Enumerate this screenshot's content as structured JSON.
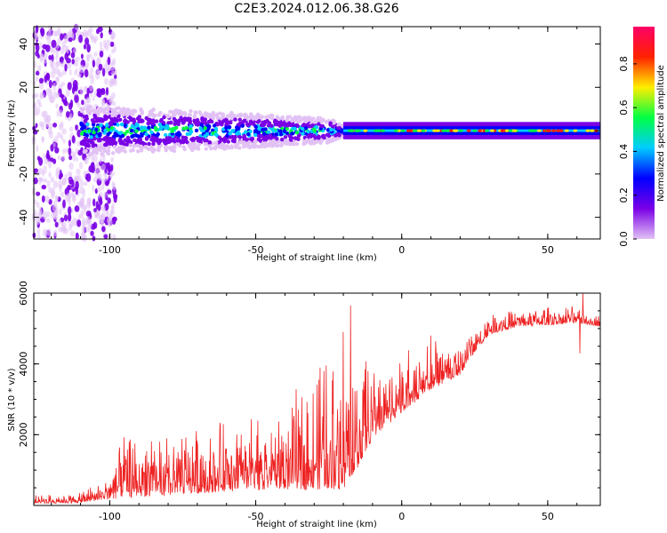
{
  "title": "C2E3.2024.012.06.38.G26",
  "chart_data": [
    {
      "type": "heatmap",
      "xlabel": "Height of straight line (km)",
      "ylabel": "Frequency (Hz)",
      "xlim": [
        -126,
        68
      ],
      "ylim": [
        -50,
        48
      ],
      "xticks": [
        -100,
        -50,
        0,
        50
      ],
      "yticks": [
        -40,
        -20,
        0,
        20,
        40
      ],
      "colorbar": {
        "label": "Normalized spectral amplitude",
        "range": [
          0,
          0.97
        ],
        "ticks": [
          "0.0",
          "0.2",
          "0.4",
          "0.6",
          "0.8"
        ],
        "colormap": [
          "#e2c2f5",
          "#7a00e6",
          "#0000ff",
          "#00ccff",
          "#00ff44",
          "#ffee00",
          "#ff2200",
          "#ff0066"
        ]
      },
      "description_points": {
        "noise_region_x": [
          -126,
          -98
        ],
        "band_start_x": -110,
        "band_center_hz": 0,
        "broad_band_halfwidth_hz": [
          8,
          6,
          4,
          2
        ],
        "broad_band_x": [
          -110,
          -60,
          -25,
          -20
        ],
        "narrow_band_halfwidth_hz": 2
      }
    },
    {
      "type": "line",
      "xlabel": "Height of straight line (km)",
      "ylabel": "SNR (10 * v/v)",
      "xlim": [
        -126,
        68
      ],
      "ylim": [
        0,
        6000
      ],
      "xticks": [
        -100,
        -50,
        0,
        50
      ],
      "yticks": [
        2000,
        4000,
        6000
      ],
      "color": "#ee2222",
      "envelope": {
        "x": [
          -126,
          -110,
          -100,
          -95,
          -80,
          -60,
          -40,
          -30,
          -20,
          -15,
          -10,
          0,
          10,
          20,
          25,
          30,
          40,
          50,
          60,
          68
        ],
        "base": [
          80,
          100,
          250,
          400,
          450,
          600,
          700,
          800,
          900,
          1400,
          2100,
          2800,
          3400,
          3800,
          4400,
          4900,
          5100,
          5150,
          5200,
          5100
        ],
        "amp": [
          150,
          200,
          500,
          1200,
          1200,
          1400,
          1600,
          2400,
          3000,
          2200,
          1500,
          1200,
          900,
          800,
          500,
          400,
          350,
          350,
          350,
          300
        ]
      },
      "spikes": [
        {
          "x": -17.5,
          "y": 5650
        },
        {
          "x": 62,
          "y": 6000
        },
        {
          "x": 61,
          "y": 4300
        },
        {
          "x": -20,
          "y": 4900
        },
        {
          "x": 10,
          "y": 4800
        }
      ]
    }
  ]
}
